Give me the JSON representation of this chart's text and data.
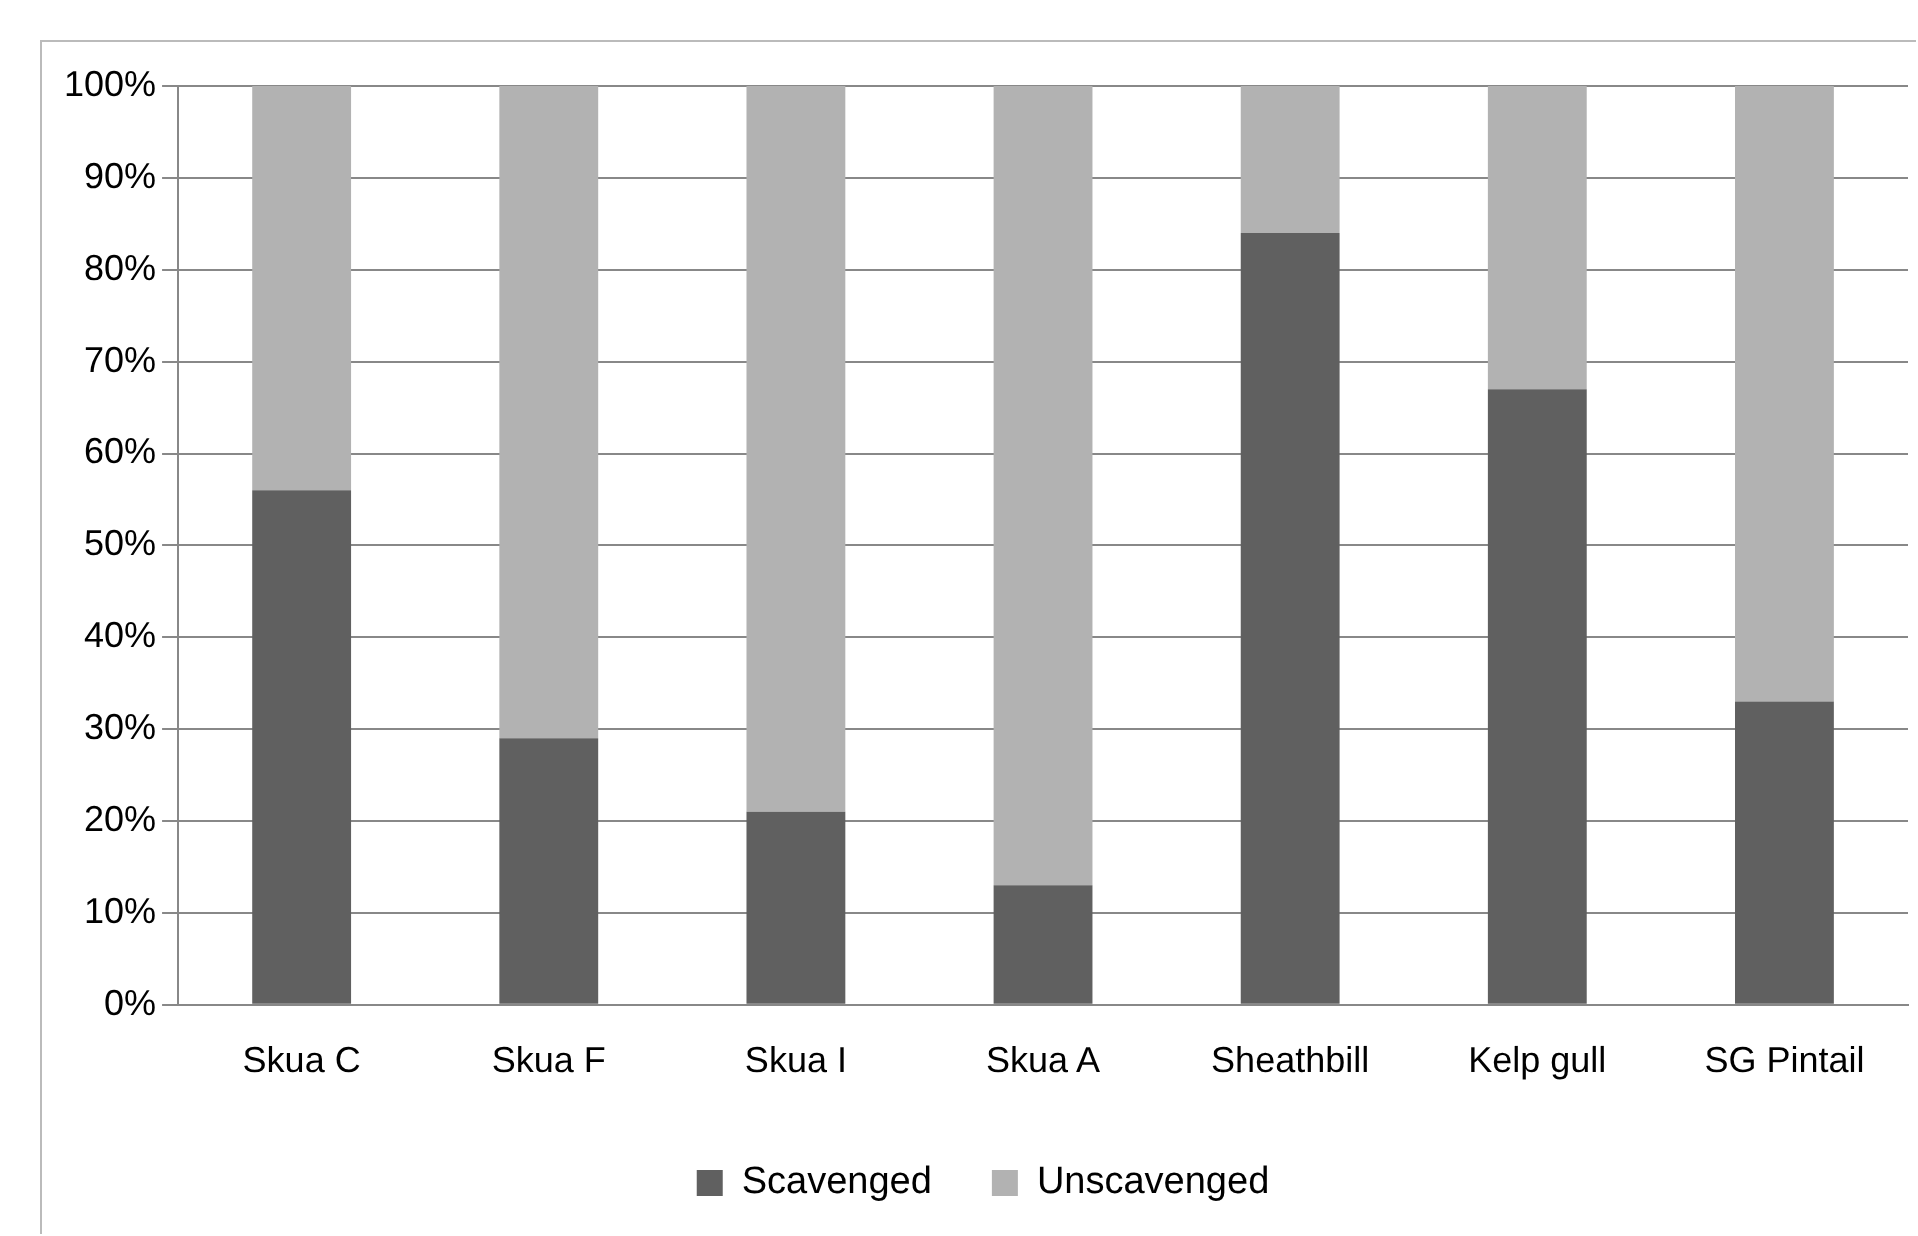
{
  "chart_data": {
    "type": "bar",
    "stacked": true,
    "categories": [
      "Skua C",
      "Skua F",
      "Skua I",
      "Skua A",
      "Sheathbill",
      "Kelp gull",
      "SG Pintail"
    ],
    "series": [
      {
        "name": "Scavenged",
        "color": "#606060",
        "values": [
          56,
          29,
          21,
          13,
          84,
          67,
          33
        ]
      },
      {
        "name": "Unscavenged",
        "color": "#b2b2b2",
        "values": [
          44,
          71,
          79,
          87,
          16,
          33,
          67
        ]
      }
    ],
    "ylim": [
      0,
      100
    ],
    "yticks": [
      {
        "value": 0,
        "label": "0%"
      },
      {
        "value": 10,
        "label": "10%"
      },
      {
        "value": 20,
        "label": "20%"
      },
      {
        "value": 30,
        "label": "30%"
      },
      {
        "value": 40,
        "label": "40%"
      },
      {
        "value": 50,
        "label": "50%"
      },
      {
        "value": 60,
        "label": "60%"
      },
      {
        "value": 70,
        "label": "70%"
      },
      {
        "value": 80,
        "label": "80%"
      },
      {
        "value": 90,
        "label": "90%"
      },
      {
        "value": 100,
        "label": "100%"
      }
    ],
    "grid": "y",
    "legend": "bottom"
  }
}
